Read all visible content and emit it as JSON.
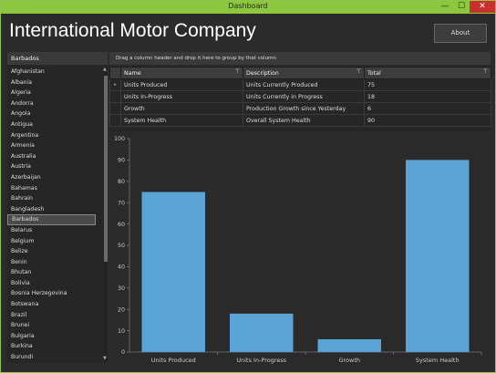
{
  "window": {
    "title": "Dashboard",
    "controls": {
      "minimize": "—",
      "maximize": "☐",
      "close": "✕"
    }
  },
  "header": {
    "app_title": "International Motor Company",
    "about_label": "About"
  },
  "country_selector": {
    "selected": "Barbados",
    "items": [
      "Afghanistan",
      "Albania",
      "Algeria",
      "Andorra",
      "Angola",
      "Antigua",
      "Argentina",
      "Armenia",
      "Australia",
      "Austria",
      "Azerbaijan",
      "Bahamas",
      "Bahrain",
      "Bangladesh",
      "Barbados",
      "Belarus",
      "Belgium",
      "Belize",
      "Benin",
      "Bhutan",
      "Bolivia",
      "Bosnia Herzegovina",
      "Botswana",
      "Brazil",
      "Brunei",
      "Bulgaria",
      "Burkina",
      "Burundi"
    ]
  },
  "grid": {
    "group_hint": "Drag a column header and drop it here to group by that column",
    "columns": [
      "Name",
      "Description",
      "Total"
    ],
    "current_row_marker": "▸",
    "rows": [
      {
        "name": "Units Produced",
        "description": "Units Currently Produced",
        "total": "75"
      },
      {
        "name": "Units In-Progress",
        "description": "Units Currently in Progress",
        "total": "18"
      },
      {
        "name": "Growth",
        "description": "Production Growth since Yesterday",
        "total": "6"
      },
      {
        "name": "System Health",
        "description": "Overall System Health",
        "total": "90"
      }
    ]
  },
  "chart_data": {
    "type": "bar",
    "categories": [
      "Units Produced",
      "Units In-Progress",
      "Growth",
      "System Health"
    ],
    "values": [
      75,
      18,
      6,
      90
    ],
    "title": "",
    "xlabel": "",
    "ylabel": "",
    "ylim": [
      0,
      100
    ],
    "yticks": [
      0,
      10,
      20,
      30,
      40,
      50,
      60,
      70,
      80,
      90,
      100
    ],
    "grid": false,
    "bar_color": "#5aa3d5"
  },
  "colors": {
    "accent": "#8dc63f",
    "background": "#2b2b2b",
    "bar": "#5aa3d5",
    "close": "#c9302c"
  }
}
